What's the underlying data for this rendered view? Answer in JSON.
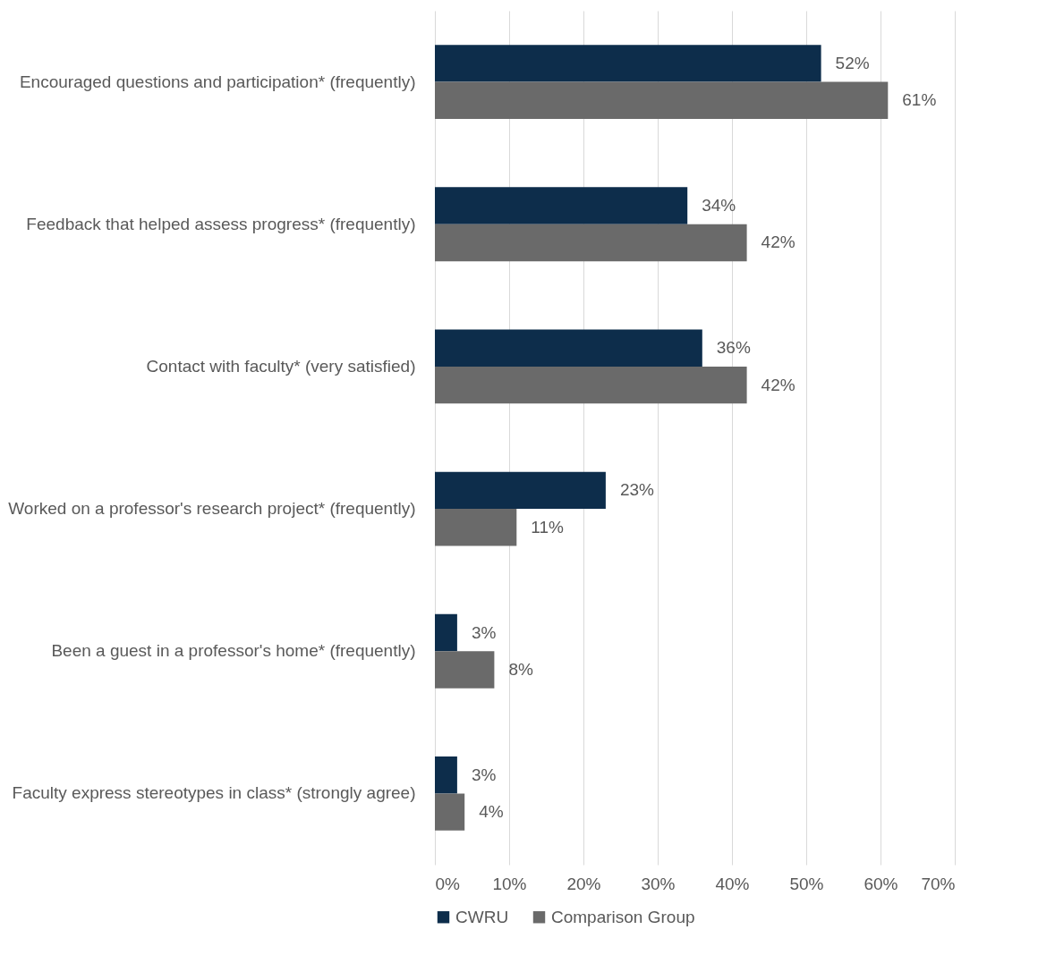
{
  "chart_data": {
    "type": "bar",
    "orientation": "horizontal",
    "categories": [
      "Encouraged questions and participation* (frequently)",
      "Feedback that helped assess progress* (frequently)",
      "Contact with faculty* (very satisfied)",
      "Worked on a professor's research project* (frequently)",
      "Been a guest in a professor's home* (frequently)",
      "Faculty express stereotypes in class* (strongly agree)"
    ],
    "series": [
      {
        "name": "CWRU",
        "color": "#0d2d4b",
        "values": [
          52,
          34,
          36,
          23,
          3,
          3
        ],
        "value_labels": [
          "52%",
          "34%",
          "36%",
          "23%",
          "3%",
          "3%"
        ]
      },
      {
        "name": "Comparison Group",
        "color": "#6a6a6a",
        "values": [
          61,
          42,
          42,
          11,
          8,
          4
        ],
        "value_labels": [
          "61%",
          "42%",
          "42%",
          "11%",
          "8%",
          "4%"
        ]
      }
    ],
    "xlim": [
      0,
      70
    ],
    "xticks": [
      {
        "value": 0,
        "label": "0%"
      },
      {
        "value": 10,
        "label": "10%"
      },
      {
        "value": 20,
        "label": "20%"
      },
      {
        "value": 30,
        "label": "30%"
      },
      {
        "value": 40,
        "label": "40%"
      },
      {
        "value": 50,
        "label": "50%"
      },
      {
        "value": 60,
        "label": "60%"
      },
      {
        "value": 70,
        "label": "70%"
      }
    ],
    "grid": "x",
    "legend": "bottom"
  }
}
